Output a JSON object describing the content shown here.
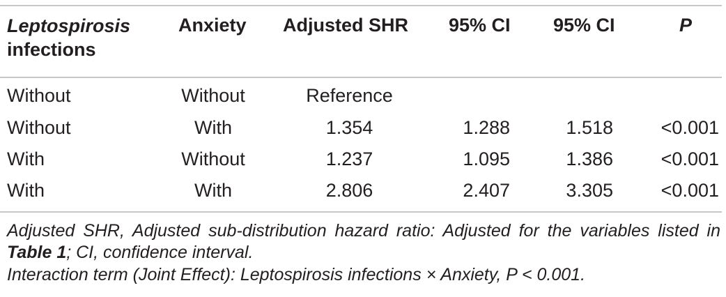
{
  "table": {
    "headers": {
      "leptospirosis_line1": "Leptospirosis",
      "leptospirosis_line2": "infections",
      "anxiety": "Anxiety",
      "adjusted_shr": "Adjusted SHR",
      "ci_lower": "95% CI",
      "ci_upper": "95% CI",
      "p": "P"
    },
    "rows": [
      {
        "leptospirosis": "Without",
        "anxiety": "Without",
        "shr": "Reference",
        "ci_lower": "",
        "ci_upper": "",
        "p": ""
      },
      {
        "leptospirosis": "Without",
        "anxiety": "With",
        "shr": "1.354",
        "ci_lower": "1.288",
        "ci_upper": "1.518",
        "p": "<0.001"
      },
      {
        "leptospirosis": "With",
        "anxiety": "Without",
        "shr": "1.237",
        "ci_lower": "1.095",
        "ci_upper": "1.386",
        "p": "<0.001"
      },
      {
        "leptospirosis": "With",
        "anxiety": "With",
        "shr": "2.806",
        "ci_lower": "2.407",
        "ci_upper": "3.305",
        "p": "<0.001"
      }
    ]
  },
  "footnotes": {
    "note1_part1": "Adjusted SHR, Adjusted sub-distribution hazard ratio: Adjusted for the variables listed in ",
    "note1_ref": "Table 1",
    "note1_part2": "; CI, confidence interval.",
    "note2": "Interaction term (Joint Effect): Leptospirosis infections × Anxiety, P < 0.001."
  },
  "colors": {
    "text": "#231f20",
    "rule": "#c7c7c7"
  }
}
